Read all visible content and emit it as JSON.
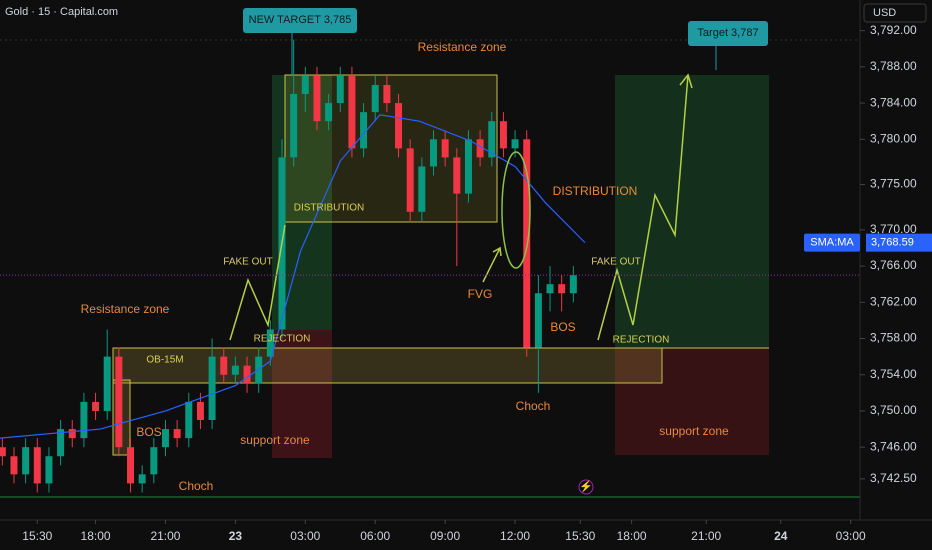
{
  "chart_data": {
    "type": "candlestick",
    "title": "Gold · 15 · Capital.com",
    "currency": "USD",
    "up_color": "#089981",
    "down_color": "#f23645",
    "x": [
      -1.5,
      -1,
      -0.5,
      0,
      0.5,
      1,
      1.5,
      2,
      2.5,
      3,
      3.5,
      4,
      4.5,
      5,
      5.5,
      6,
      6.5,
      7,
      7.5,
      8,
      8.5,
      9,
      9.5,
      10,
      10.5,
      11,
      11.5,
      12,
      12.5,
      13,
      13.5,
      14,
      14.5,
      15,
      15.5,
      16,
      16.5,
      17,
      17.5,
      18,
      18.5,
      19,
      19.5,
      20,
      20.5,
      21,
      21.5,
      22,
      22.5,
      23
    ],
    "ohlc": [
      [
        3746,
        3747,
        3744,
        3745
      ],
      [
        3745,
        3746,
        3742,
        3743
      ],
      [
        3743,
        3747,
        3742,
        3746
      ],
      [
        3746,
        3747,
        3741,
        3742
      ],
      [
        3742,
        3746,
        3741,
        3745
      ],
      [
        3745,
        3749,
        3744,
        3748
      ],
      [
        3748,
        3749,
        3746,
        3747
      ],
      [
        3747,
        3752,
        3746,
        3751
      ],
      [
        3751,
        3752,
        3749,
        3750
      ],
      [
        3750,
        3759,
        3749,
        3756
      ],
      [
        3756,
        3757,
        3745,
        3746
      ],
      [
        3746,
        3747,
        3741,
        3742
      ],
      [
        3742,
        3744,
        3741,
        3743
      ],
      [
        3743,
        3747,
        3742,
        3746
      ],
      [
        3746,
        3749,
        3745,
        3748
      ],
      [
        3748,
        3749,
        3746,
        3747
      ],
      [
        3747,
        3752,
        3746,
        3751
      ],
      [
        3751,
        3752,
        3748,
        3749
      ],
      [
        3749,
        3758,
        3748,
        3756
      ],
      [
        3756,
        3757,
        3753,
        3754
      ],
      [
        3754,
        3756,
        3753,
        3755
      ],
      [
        3755,
        3756,
        3752,
        3753
      ],
      [
        3753,
        3757,
        3752,
        3756
      ],
      [
        3756,
        3760,
        3755,
        3759
      ],
      [
        3759,
        3780,
        3758,
        3778
      ],
      [
        3778,
        3791,
        3777,
        3785
      ],
      [
        3785,
        3788,
        3783,
        3787
      ],
      [
        3787,
        3788,
        3781,
        3782
      ],
      [
        3782,
        3785,
        3781,
        3784
      ],
      [
        3784,
        3788,
        3783,
        3787
      ],
      [
        3787,
        3788,
        3778,
        3779
      ],
      [
        3779,
        3784,
        3778,
        3783
      ],
      [
        3783,
        3787,
        3782,
        3786
      ],
      [
        3786,
        3787,
        3783,
        3784
      ],
      [
        3784,
        3785,
        3778,
        3779
      ],
      [
        3779,
        3780,
        3771,
        3772
      ],
      [
        3772,
        3778,
        3771,
        3777
      ],
      [
        3777,
        3781,
        3776,
        3780
      ],
      [
        3780,
        3781,
        3777,
        3778
      ],
      [
        3778,
        3779,
        3766,
        3774
      ],
      [
        3774,
        3781,
        3773,
        3780
      ],
      [
        3780,
        3781,
        3777,
        3778
      ],
      [
        3778,
        3783,
        3777,
        3782
      ],
      [
        3782,
        3783,
        3778,
        3779
      ],
      [
        3779,
        3781,
        3778,
        3780
      ],
      [
        3780,
        3781,
        3756,
        3757
      ],
      [
        3757,
        3765,
        3752,
        3763
      ],
      [
        3763,
        3766,
        3761,
        3764
      ],
      [
        3764,
        3765,
        3761,
        3763
      ],
      [
        3763,
        3766,
        3762,
        3765
      ]
    ],
    "sma": {
      "name": "SMA:MA",
      "color": "#2962ff",
      "x": [
        -1.6,
        2.7,
        5.5,
        8.5,
        10,
        11.3,
        13,
        14.7,
        16.4,
        18.6,
        20.5,
        21.8,
        23.5
      ],
      "values": [
        3747,
        3748,
        3750,
        3752.8,
        3755.5,
        3767.7,
        3777.6,
        3782.7,
        3782,
        3779.8,
        3777,
        3773,
        3768.59
      ]
    },
    "price_tag": {
      "value": 3768.59,
      "label": "3,768.59"
    },
    "xlim": [
      -1.6,
      35.3
    ],
    "xticks": [
      {
        "value": 0,
        "label": "15:30"
      },
      {
        "value": 2.5,
        "label": "18:00"
      },
      {
        "value": 5.5,
        "label": "21:00"
      },
      {
        "value": 8.5,
        "label": "23"
      },
      {
        "value": 11.5,
        "label": "03:00"
      },
      {
        "value": 14.5,
        "label": "06:00"
      },
      {
        "value": 17.5,
        "label": "09:00"
      },
      {
        "value": 20.5,
        "label": "12:00"
      },
      {
        "value": 23.3,
        "label": "15:30"
      },
      {
        "value": 25.5,
        "label": "18:00"
      },
      {
        "value": 28.7,
        "label": "21:00"
      },
      {
        "value": 31.9,
        "label": "24"
      },
      {
        "value": 34.9,
        "label": "03:00"
      }
    ],
    "ylim": [
      3738.4,
      3794.5
    ],
    "yticks": [
      {
        "value": 3792,
        "label": "3,792.00"
      },
      {
        "value": 3788,
        "label": "3,788.00"
      },
      {
        "value": 3784,
        "label": "3,784.00"
      },
      {
        "value": 3780,
        "label": "3,780.00"
      },
      {
        "value": 3775,
        "label": "3,775.00"
      },
      {
        "value": 3770,
        "label": "3,770.00"
      },
      {
        "value": 3766,
        "label": "3,766.00"
      },
      {
        "value": 3762,
        "label": "3,762.00"
      },
      {
        "value": 3758,
        "label": "3,758.00"
      },
      {
        "value": 3754,
        "label": "3,754.00"
      },
      {
        "value": 3750,
        "label": "3,750.00"
      },
      {
        "value": 3746,
        "label": "3,746.00"
      },
      {
        "value": 3742.5,
        "label": "3,742.50"
      }
    ],
    "annotations": [
      "NEW TARGET 3,785",
      "Target 3,787",
      "Resistance zone",
      "Resistance zone",
      "DISTRIBUTION",
      "DISTRIBUTION",
      "FAKE OUT",
      "FAKE OUT",
      "REJECTION",
      "REJECTION",
      "FVG",
      "BOS",
      "BOS",
      "OB-15M",
      "Choch",
      "Choch",
      "support zone",
      "support zone"
    ]
  }
}
